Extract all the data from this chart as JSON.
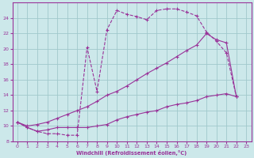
{
  "xlabel": "Windchill (Refroidissement éolien,°C)",
  "bg_color": "#cce8ea",
  "grid_color": "#a0c8cc",
  "line_color": "#993399",
  "xlim": [
    -0.5,
    23.5
  ],
  "ylim": [
    8,
    26
  ],
  "xticks": [
    0,
    1,
    2,
    3,
    4,
    5,
    6,
    7,
    8,
    9,
    10,
    11,
    12,
    13,
    14,
    15,
    16,
    17,
    18,
    19,
    20,
    21,
    22,
    23
  ],
  "yticks": [
    8,
    10,
    12,
    14,
    16,
    18,
    20,
    22,
    24
  ],
  "line1_x": [
    0,
    1,
    2,
    3,
    4,
    5,
    6,
    7,
    8,
    9,
    10,
    11,
    12,
    13,
    14,
    15,
    16,
    17,
    18,
    19,
    20,
    21,
    22
  ],
  "line1_y": [
    10.5,
    9.8,
    9.3,
    9.0,
    9.0,
    8.8,
    8.8,
    20.2,
    14.5,
    22.5,
    25.0,
    24.5,
    24.2,
    23.8,
    25.0,
    25.2,
    25.2,
    24.8,
    24.3,
    22.2,
    21.0,
    19.5,
    13.8
  ],
  "line2_x": [
    0,
    1,
    2,
    3,
    4,
    5,
    6,
    7,
    8,
    9,
    10,
    11,
    12,
    13,
    14,
    15,
    16,
    17,
    18,
    19,
    20,
    21,
    22
  ],
  "line2_y": [
    10.5,
    10.0,
    10.2,
    10.5,
    11.0,
    11.5,
    12.0,
    12.5,
    13.2,
    14.0,
    14.5,
    15.2,
    16.0,
    16.8,
    17.5,
    18.2,
    19.0,
    19.8,
    20.5,
    22.0,
    21.2,
    20.8,
    13.8
  ],
  "line3_x": [
    0,
    1,
    2,
    3,
    4,
    5,
    6,
    7,
    8,
    9,
    10,
    11,
    12,
    13,
    14,
    15,
    16,
    17,
    18,
    19,
    20,
    21,
    22
  ],
  "line3_y": [
    10.5,
    9.8,
    9.3,
    9.5,
    9.8,
    9.8,
    9.8,
    9.8,
    10.0,
    10.2,
    10.8,
    11.2,
    11.5,
    11.8,
    12.0,
    12.5,
    12.8,
    13.0,
    13.3,
    13.8,
    14.0,
    14.2,
    13.8
  ]
}
